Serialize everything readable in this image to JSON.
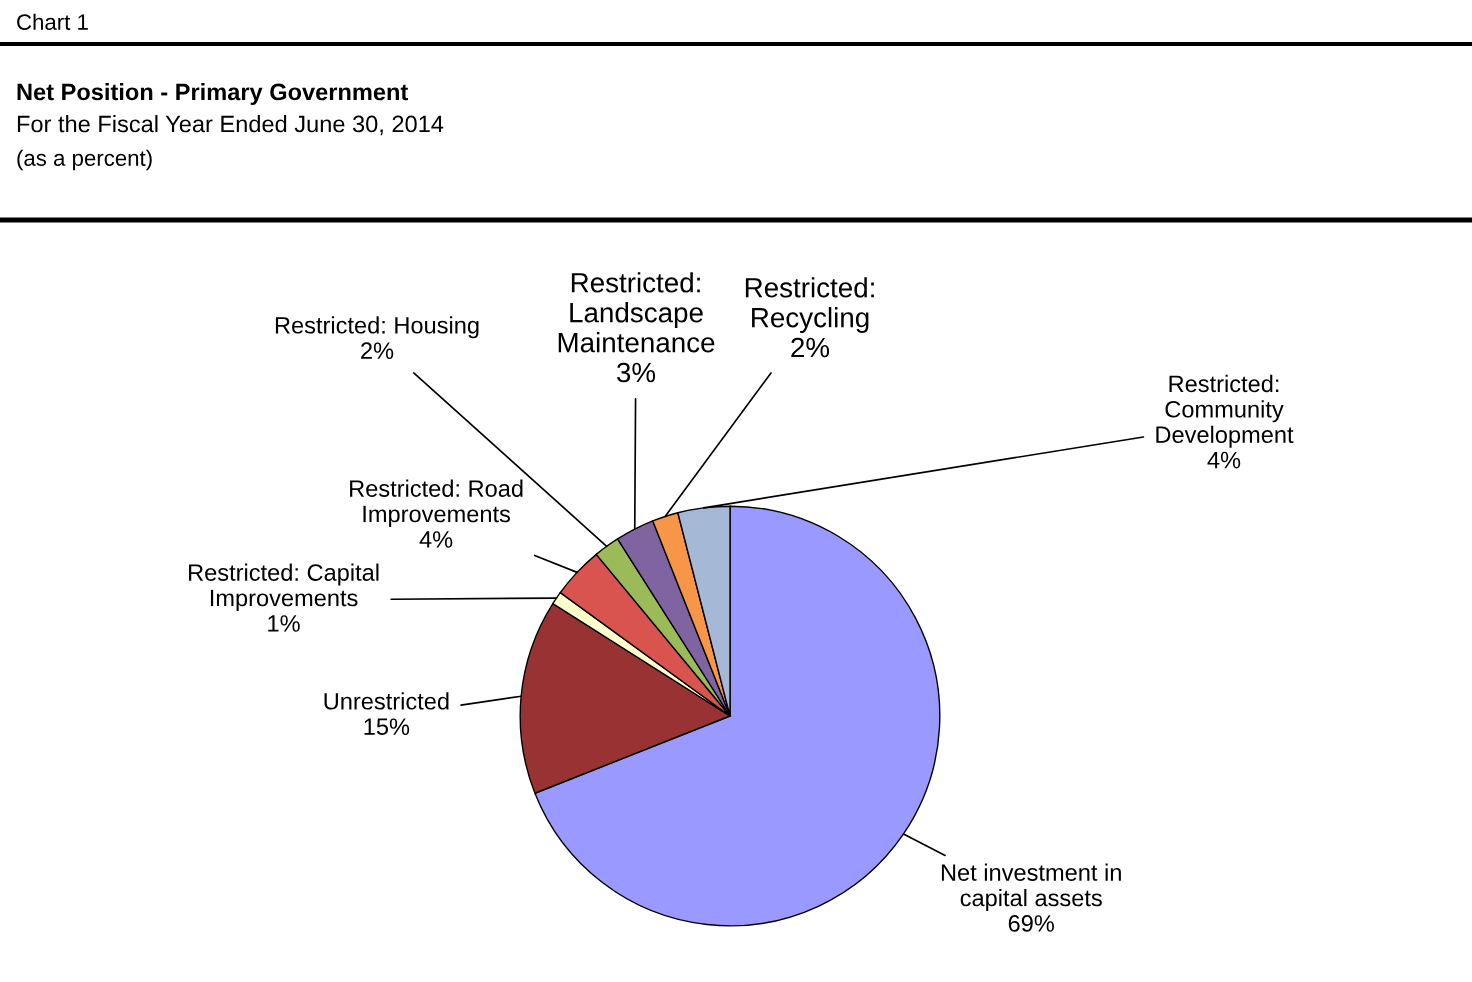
{
  "chart_data": {
    "type": "pie",
    "title": "Net Position - Primary Government",
    "subtitle": "For the Fiscal Year Ended June 30, 2014",
    "annotations": [
      "Chart 1",
      "(as a percent)"
    ],
    "categories": [
      "Net investment in\ncapital assets",
      "Unrestricted",
      "Restricted: Capital\nImprovements",
      "Restricted: Road\nImprovements",
      "Restricted: Housing",
      "Restricted:\nLandscape\nMaintenance",
      "Restricted:\nRecycling",
      "Restricted:\nCommunity\nDevelopment"
    ],
    "values": [
      69,
      15,
      1,
      4,
      2,
      3,
      2,
      4
    ],
    "value_labels": [
      "69%",
      "15%",
      "1%",
      "4%",
      "2%",
      "3%",
      "2%",
      "4%"
    ],
    "colors": [
      "#9999ff",
      "#993333",
      "#ffffcc",
      "#d9534f",
      "#9bbb59",
      "#8064a2",
      "#f79646",
      "#a5b8d6"
    ],
    "legend": false
  }
}
